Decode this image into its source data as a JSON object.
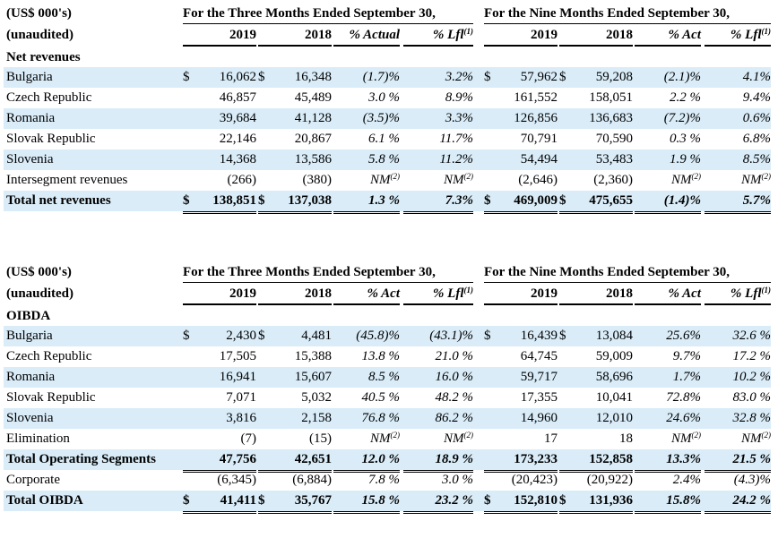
{
  "tables": [
    {
      "name": "net-revenues",
      "header_label_1": "(US$ 000's)",
      "header_label_2": "(unaudited)",
      "group1": "For the Three Months Ended September 30,",
      "group2": "For the Nine Months Ended September 30,",
      "columns": [
        {
          "text": "2019",
          "sup": ""
        },
        {
          "text": "2018",
          "sup": ""
        },
        {
          "text": "% Actual",
          "sup": ""
        },
        {
          "text": "% Lfl",
          "sup": "(1)"
        },
        {
          "text": "2019",
          "sup": ""
        },
        {
          "text": "2018",
          "sup": ""
        },
        {
          "text": "% Act",
          "sup": ""
        },
        {
          "text": "% Lfl",
          "sup": "(1)"
        }
      ],
      "section": "Net revenues",
      "rows": [
        {
          "label": "Bulgaria",
          "shade": true,
          "total": false,
          "cells": [
            [
              "$",
              "16,062",
              ""
            ],
            [
              "$",
              "16,348",
              ""
            ],
            [
              "",
              "(1.7)%",
              ""
            ],
            [
              "",
              "3.2%",
              ""
            ],
            [
              "$",
              "57,962",
              ""
            ],
            [
              "$",
              "59,208",
              ""
            ],
            [
              "",
              "(2.1)%",
              ""
            ],
            [
              "",
              "4.1%",
              ""
            ]
          ]
        },
        {
          "label": "Czech Republic",
          "shade": false,
          "total": false,
          "cells": [
            [
              "",
              "46,857",
              ""
            ],
            [
              "",
              "45,489",
              ""
            ],
            [
              "",
              "3.0 %",
              ""
            ],
            [
              "",
              "8.9%",
              ""
            ],
            [
              "",
              "161,552",
              ""
            ],
            [
              "",
              "158,051",
              ""
            ],
            [
              "",
              "2.2 %",
              ""
            ],
            [
              "",
              "9.4%",
              ""
            ]
          ]
        },
        {
          "label": "Romania",
          "shade": true,
          "total": false,
          "cells": [
            [
              "",
              "39,684",
              ""
            ],
            [
              "",
              "41,128",
              ""
            ],
            [
              "",
              "(3.5)%",
              ""
            ],
            [
              "",
              "3.3%",
              ""
            ],
            [
              "",
              "126,856",
              ""
            ],
            [
              "",
              "136,683",
              ""
            ],
            [
              "",
              "(7.2)%",
              ""
            ],
            [
              "",
              "0.6%",
              ""
            ]
          ]
        },
        {
          "label": "Slovak Republic",
          "shade": false,
          "total": false,
          "cells": [
            [
              "",
              "22,146",
              ""
            ],
            [
              "",
              "20,867",
              ""
            ],
            [
              "",
              "6.1 %",
              ""
            ],
            [
              "",
              "11.7%",
              ""
            ],
            [
              "",
              "70,791",
              ""
            ],
            [
              "",
              "70,590",
              ""
            ],
            [
              "",
              "0.3 %",
              ""
            ],
            [
              "",
              "6.8%",
              ""
            ]
          ]
        },
        {
          "label": "Slovenia",
          "shade": true,
          "total": false,
          "cells": [
            [
              "",
              "14,368",
              ""
            ],
            [
              "",
              "13,586",
              ""
            ],
            [
              "",
              "5.8 %",
              ""
            ],
            [
              "",
              "11.2%",
              ""
            ],
            [
              "",
              "54,494",
              ""
            ],
            [
              "",
              "53,483",
              ""
            ],
            [
              "",
              "1.9 %",
              ""
            ],
            [
              "",
              "8.5%",
              ""
            ]
          ]
        },
        {
          "label": "Intersegment revenues",
          "shade": false,
          "total": false,
          "cells": [
            [
              "",
              "(266)",
              ""
            ],
            [
              "",
              "(380)",
              ""
            ],
            [
              "",
              "NM",
              "(2)"
            ],
            [
              "",
              "NM",
              "(2)"
            ],
            [
              "",
              "(2,646)",
              ""
            ],
            [
              "",
              "(2,360)",
              ""
            ],
            [
              "",
              "NM",
              "(2)"
            ],
            [
              "",
              "NM",
              "(2)"
            ]
          ]
        },
        {
          "label": "Total net revenues",
          "shade": true,
          "total": true,
          "cells": [
            [
              "$",
              "138,851",
              ""
            ],
            [
              "$",
              "137,038",
              ""
            ],
            [
              "",
              "1.3 %",
              ""
            ],
            [
              "",
              "7.3%",
              ""
            ],
            [
              "$",
              "469,009",
              ""
            ],
            [
              "$",
              "475,655",
              ""
            ],
            [
              "",
              "(1.4)%",
              ""
            ],
            [
              "",
              "5.7%",
              ""
            ]
          ]
        }
      ]
    },
    {
      "name": "oibda",
      "header_label_1": "(US$ 000's)",
      "header_label_2": "(unaudited)",
      "group1": "For the Three Months Ended September 30,",
      "group2": "For the Nine Months Ended September 30,",
      "columns": [
        {
          "text": "2019",
          "sup": ""
        },
        {
          "text": "2018",
          "sup": ""
        },
        {
          "text": "% Act",
          "sup": ""
        },
        {
          "text": "% Lfl",
          "sup": "(1)"
        },
        {
          "text": "2019",
          "sup": ""
        },
        {
          "text": "2018",
          "sup": ""
        },
        {
          "text": "% Act",
          "sup": ""
        },
        {
          "text": "% Lfl",
          "sup": "(1)"
        }
      ],
      "section": "OIBDA",
      "rows": [
        {
          "label": "Bulgaria",
          "shade": true,
          "total": false,
          "cells": [
            [
              "$",
              "2,430",
              ""
            ],
            [
              "$",
              "4,481",
              ""
            ],
            [
              "",
              "(45.8)%",
              ""
            ],
            [
              "",
              "(43.1)%",
              ""
            ],
            [
              "$",
              "16,439",
              ""
            ],
            [
              "$",
              "13,084",
              ""
            ],
            [
              "",
              "25.6%",
              ""
            ],
            [
              "",
              "32.6 %",
              ""
            ]
          ]
        },
        {
          "label": "Czech Republic",
          "shade": false,
          "total": false,
          "cells": [
            [
              "",
              "17,505",
              ""
            ],
            [
              "",
              "15,388",
              ""
            ],
            [
              "",
              "13.8 %",
              ""
            ],
            [
              "",
              "21.0 %",
              ""
            ],
            [
              "",
              "64,745",
              ""
            ],
            [
              "",
              "59,009",
              ""
            ],
            [
              "",
              "9.7%",
              ""
            ],
            [
              "",
              "17.2 %",
              ""
            ]
          ]
        },
        {
          "label": "Romania",
          "shade": true,
          "total": false,
          "cells": [
            [
              "",
              "16,941",
              ""
            ],
            [
              "",
              "15,607",
              ""
            ],
            [
              "",
              "8.5 %",
              ""
            ],
            [
              "",
              "16.0 %",
              ""
            ],
            [
              "",
              "59,717",
              ""
            ],
            [
              "",
              "58,696",
              ""
            ],
            [
              "",
              "1.7%",
              ""
            ],
            [
              "",
              "10.2 %",
              ""
            ]
          ]
        },
        {
          "label": "Slovak Republic",
          "shade": false,
          "total": false,
          "cells": [
            [
              "",
              "7,071",
              ""
            ],
            [
              "",
              "5,032",
              ""
            ],
            [
              "",
              "40.5 %",
              ""
            ],
            [
              "",
              "48.2 %",
              ""
            ],
            [
              "",
              "17,355",
              ""
            ],
            [
              "",
              "10,041",
              ""
            ],
            [
              "",
              "72.8%",
              ""
            ],
            [
              "",
              "83.0 %",
              ""
            ]
          ]
        },
        {
          "label": "Slovenia",
          "shade": true,
          "total": false,
          "cells": [
            [
              "",
              "3,816",
              ""
            ],
            [
              "",
              "2,158",
              ""
            ],
            [
              "",
              "76.8 %",
              ""
            ],
            [
              "",
              "86.2 %",
              ""
            ],
            [
              "",
              "14,960",
              ""
            ],
            [
              "",
              "12,010",
              ""
            ],
            [
              "",
              "24.6%",
              ""
            ],
            [
              "",
              "32.8 %",
              ""
            ]
          ]
        },
        {
          "label": "Elimination",
          "shade": false,
          "total": false,
          "cells": [
            [
              "",
              "(7)",
              ""
            ],
            [
              "",
              "(15)",
              ""
            ],
            [
              "",
              "NM",
              "(2)"
            ],
            [
              "",
              "NM",
              "(2)"
            ],
            [
              "",
              "17",
              ""
            ],
            [
              "",
              "18",
              ""
            ],
            [
              "",
              "NM",
              "(2)"
            ],
            [
              "",
              "NM",
              "(2)"
            ]
          ]
        },
        {
          "label": "Total Operating Segments",
          "shade": true,
          "total": true,
          "cells": [
            [
              "",
              "47,756",
              ""
            ],
            [
              "",
              "42,651",
              ""
            ],
            [
              "",
              "12.0 %",
              ""
            ],
            [
              "",
              "18.9 %",
              ""
            ],
            [
              "",
              "173,233",
              ""
            ],
            [
              "",
              "152,858",
              ""
            ],
            [
              "",
              "13.3%",
              ""
            ],
            [
              "",
              "21.5 %",
              ""
            ]
          ]
        },
        {
          "label": "Corporate",
          "shade": false,
          "total": false,
          "cells": [
            [
              "",
              "(6,345)",
              ""
            ],
            [
              "",
              "(6,884)",
              ""
            ],
            [
              "",
              "7.8 %",
              ""
            ],
            [
              "",
              "3.0 %",
              ""
            ],
            [
              "",
              "(20,423)",
              ""
            ],
            [
              "",
              "(20,922)",
              ""
            ],
            [
              "",
              "2.4%",
              ""
            ],
            [
              "",
              "(4.3)%",
              ""
            ]
          ]
        },
        {
          "label": "Total OIBDA",
          "shade": true,
          "total": true,
          "cells": [
            [
              "$",
              "41,411",
              ""
            ],
            [
              "$",
              "35,767",
              ""
            ],
            [
              "",
              "15.8 %",
              ""
            ],
            [
              "",
              "23.2 %",
              ""
            ],
            [
              "$",
              "152,810",
              ""
            ],
            [
              "$",
              "131,936",
              ""
            ],
            [
              "",
              "15.8%",
              ""
            ],
            [
              "",
              "24.2 %",
              ""
            ]
          ]
        }
      ]
    }
  ]
}
